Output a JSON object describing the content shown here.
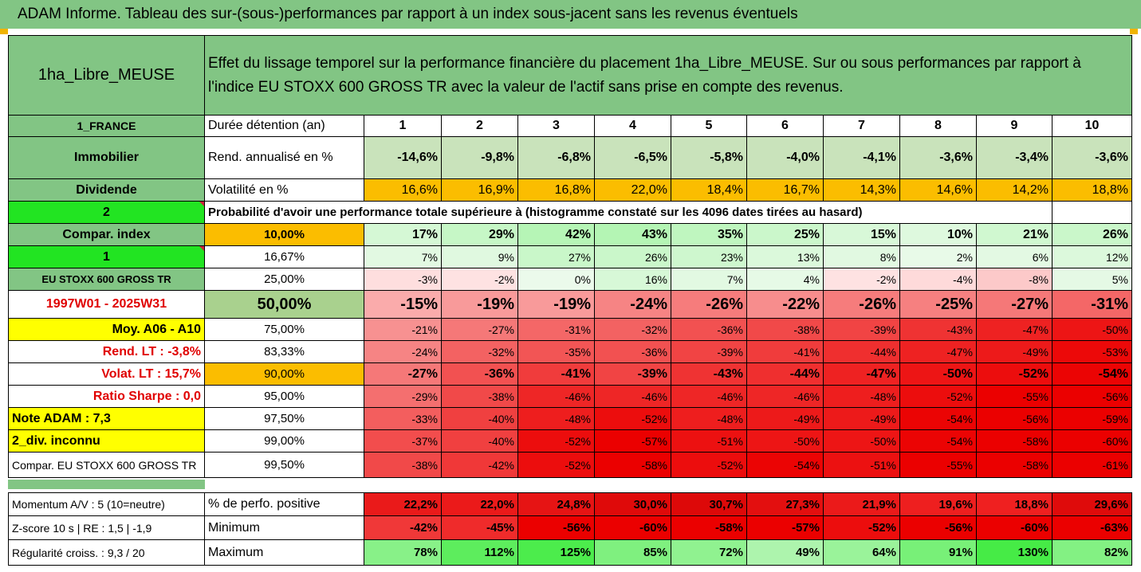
{
  "title": "ADAM Informe. Tableau des sur-(sous-)performances par rapport à un index sous-jacent sans les revenus éventuels",
  "header": {
    "fund": "1ha_Libre_MEUSE",
    "description_line1": "Effet du lissage temporel sur la performance financière du placement 1ha_Libre_MEUSE. Sur ou sous performances par rapport à",
    "description_line2": "l'indice EU STOXX 600 GROSS TR avec la valeur de l'actif sans prise en compte des revenus."
  },
  "left_labels": {
    "country": "1_FRANCE",
    "asset_class": "Immobilier",
    "income": "Dividende",
    "code": "2",
    "compar_index": "Compar. index",
    "index_num": "1",
    "index_name": "EU STOXX 600 GROSS TR",
    "period": "1997W01 - 2025W31",
    "moy": "Moy. A06 - A10",
    "rend_lt": "Rend. LT :   -3,8%",
    "volat_lt": "Volat. LT :   15,7%",
    "sharpe": "Ratio Sharpe :    0,0",
    "note": "Note ADAM : 7,3",
    "div": "2_div. inconnu",
    "compar_full": "Compar. EU STOXX 600 GROSS TR"
  },
  "row_labels": {
    "duration": "Durée détention (an)",
    "rend": "Rend. annualisé en %",
    "vol": "Volatilité en %",
    "prob": "Probabilité d'avoir une performance totale supérieure à (histogramme constaté sur les 4096 dates tirées au hasard)"
  },
  "years": [
    "1",
    "2",
    "3",
    "4",
    "5",
    "6",
    "7",
    "8",
    "9",
    "10"
  ],
  "rend_values": [
    "-14,6%",
    "-9,8%",
    "-6,8%",
    "-6,5%",
    "-5,8%",
    "-4,0%",
    "-4,1%",
    "-3,6%",
    "-3,4%",
    "-3,6%"
  ],
  "vol_values": [
    "16,6%",
    "16,9%",
    "16,8%",
    "22,0%",
    "18,4%",
    "16,7%",
    "14,3%",
    "14,6%",
    "14,2%",
    "18,8%"
  ],
  "percentile_rows": [
    {
      "p": "10,00%",
      "v": [
        "17%",
        "29%",
        "42%",
        "43%",
        "35%",
        "25%",
        "15%",
        "10%",
        "21%",
        "26%"
      ]
    },
    {
      "p": "16,67%",
      "v": [
        "7%",
        "9%",
        "27%",
        "26%",
        "23%",
        "13%",
        "8%",
        "2%",
        "6%",
        "12%"
      ]
    },
    {
      "p": "25,00%",
      "v": [
        "-3%",
        "-2%",
        "0%",
        "16%",
        "7%",
        "4%",
        "-2%",
        "-4%",
        "-8%",
        "5%"
      ]
    },
    {
      "p": "50,00%",
      "v": [
        "-15%",
        "-19%",
        "-19%",
        "-24%",
        "-26%",
        "-22%",
        "-26%",
        "-25%",
        "-27%",
        "-31%"
      ]
    },
    {
      "p": "75,00%",
      "v": [
        "-21%",
        "-27%",
        "-31%",
        "-32%",
        "-36%",
        "-38%",
        "-39%",
        "-43%",
        "-47%",
        "-50%"
      ]
    },
    {
      "p": "83,33%",
      "v": [
        "-24%",
        "-32%",
        "-35%",
        "-36%",
        "-39%",
        "-41%",
        "-44%",
        "-47%",
        "-49%",
        "-53%"
      ]
    },
    {
      "p": "90,00%",
      "v": [
        "-27%",
        "-36%",
        "-41%",
        "-39%",
        "-43%",
        "-44%",
        "-47%",
        "-50%",
        "-52%",
        "-54%"
      ]
    },
    {
      "p": "95,00%",
      "v": [
        "-29%",
        "-38%",
        "-46%",
        "-46%",
        "-46%",
        "-46%",
        "-48%",
        "-52%",
        "-55%",
        "-56%"
      ]
    },
    {
      "p": "97,50%",
      "v": [
        "-33%",
        "-40%",
        "-48%",
        "-52%",
        "-48%",
        "-49%",
        "-49%",
        "-54%",
        "-56%",
        "-59%"
      ]
    },
    {
      "p": "99,00%",
      "v": [
        "-37%",
        "-40%",
        "-52%",
        "-57%",
        "-51%",
        "-50%",
        "-50%",
        "-54%",
        "-58%",
        "-60%"
      ]
    },
    {
      "p": "99,50%",
      "v": [
        "-38%",
        "-42%",
        "-52%",
        "-58%",
        "-52%",
        "-54%",
        "-51%",
        "-55%",
        "-58%",
        "-61%"
      ]
    }
  ],
  "bottom": {
    "momentum": "Momentum A/V : 5 (10=neutre)",
    "zscore": "Z-score 10 s  |  RE : 1,5  |  -1,9",
    "regularite": "Régularité croiss. : 9,3 / 20",
    "pos_label": "% de perfo. positive",
    "min_label": "Minimum",
    "max_label": "Maximum",
    "pos_values": [
      "22,2%",
      "22,0%",
      "24,8%",
      "30,0%",
      "30,7%",
      "27,3%",
      "21,9%",
      "19,6%",
      "18,8%",
      "29,6%"
    ],
    "min_values": [
      "-42%",
      "-45%",
      "-56%",
      "-60%",
      "-58%",
      "-57%",
      "-52%",
      "-56%",
      "-60%",
      "-63%"
    ],
    "max_values": [
      "78%",
      "112%",
      "125%",
      "85%",
      "72%",
      "49%",
      "64%",
      "91%",
      "130%",
      "82%"
    ]
  },
  "colors": {
    "header_green": "#82c584",
    "orange": "#fbbd00",
    "yellow": "#ffff00",
    "bright_green": "#22e422",
    "red_text": "#e00000",
    "rend_cell": "#c9e3bb"
  }
}
